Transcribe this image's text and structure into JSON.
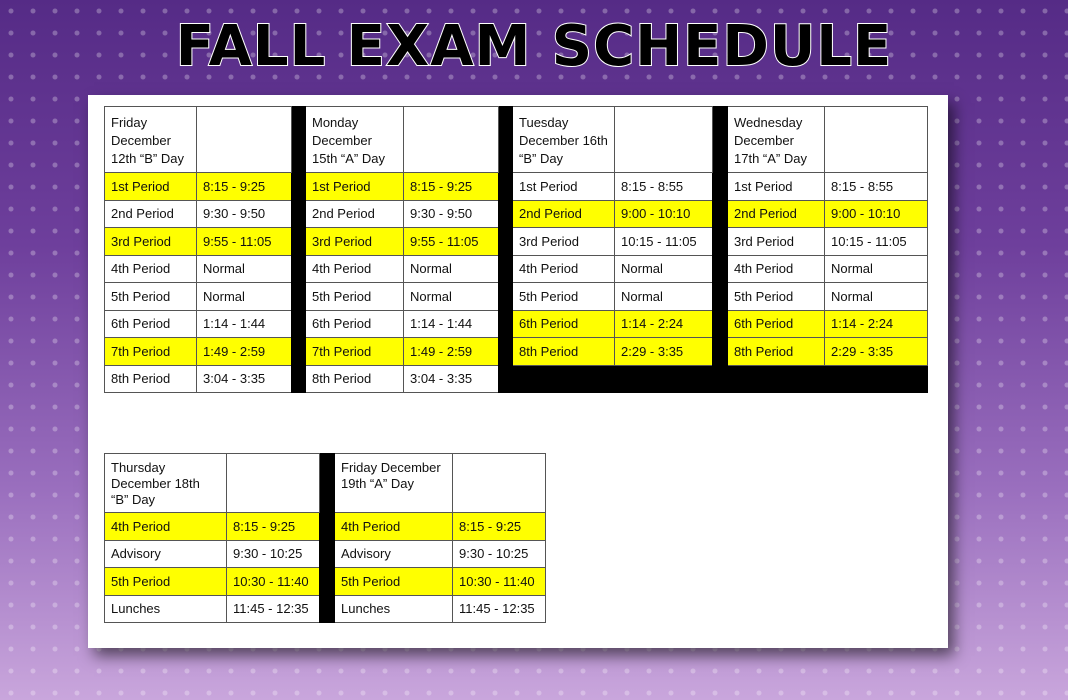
{
  "title": "FALL EXAM SCHEDULE",
  "colors": {
    "highlight": "#ffff00",
    "separator": "#000000"
  },
  "top_table": [
    {
      "header": "Friday December 12th “B” Day",
      "rows": [
        {
          "period": "1st Period",
          "time": "8:15 - 9:25",
          "highlight": true
        },
        {
          "period": "2nd Period",
          "time": "9:30 - 9:50",
          "highlight": false
        },
        {
          "period": "3rd Period",
          "time": "9:55 - 11:05",
          "highlight": true
        },
        {
          "period": "4th Period",
          "time": "Normal",
          "highlight": false
        },
        {
          "period": "5th Period",
          "time": "Normal",
          "highlight": false
        },
        {
          "period": "6th Period",
          "time": "1:14 - 1:44",
          "highlight": false
        },
        {
          "period": "7th Period",
          "time": "1:49 - 2:59",
          "highlight": true
        },
        {
          "period": "8th Period",
          "time": "3:04 - 3:35",
          "highlight": false
        }
      ]
    },
    {
      "header": "Monday December 15th “A” Day",
      "rows": [
        {
          "period": "1st Period",
          "time": "8:15 - 9:25",
          "highlight": true
        },
        {
          "period": "2nd Period",
          "time": "9:30 - 9:50",
          "highlight": false
        },
        {
          "period": "3rd Period",
          "time": "9:55 - 11:05",
          "highlight": true
        },
        {
          "period": "4th Period",
          "time": "Normal",
          "highlight": false
        },
        {
          "period": "5th Period",
          "time": "Normal",
          "highlight": false
        },
        {
          "period": "6th Period",
          "time": "1:14 - 1:44",
          "highlight": false
        },
        {
          "period": "7th Period",
          "time": "1:49 - 2:59",
          "highlight": true
        },
        {
          "period": "8th Period",
          "time": "3:04 - 3:35",
          "highlight": false
        }
      ]
    },
    {
      "header": "Tuesday December 16th “B” Day",
      "rows": [
        {
          "period": "1st Period",
          "time": "8:15 - 8:55",
          "highlight": false
        },
        {
          "period": "2nd Period",
          "time": "9:00 - 10:10",
          "highlight": true
        },
        {
          "period": "3rd Period",
          "time": "10:15 - 11:05",
          "highlight": false
        },
        {
          "period": "4th Period",
          "time": "Normal",
          "highlight": false
        },
        {
          "period": "5th Period",
          "time": "Normal",
          "highlight": false
        },
        {
          "period": "6th Period",
          "time": "1:14 - 2:24",
          "highlight": true
        },
        {
          "period": "8th Period",
          "time": "2:29 - 3:35",
          "highlight": true
        }
      ]
    },
    {
      "header": "Wednesday December 17th “A” Day",
      "rows": [
        {
          "period": "1st Period",
          "time": "8:15 - 8:55",
          "highlight": false
        },
        {
          "period": "2nd Period",
          "time": "9:00 - 10:10",
          "highlight": true
        },
        {
          "period": "3rd Period",
          "time": "10:15 - 11:05",
          "highlight": false
        },
        {
          "period": "4th Period",
          "time": "Normal",
          "highlight": false
        },
        {
          "period": "5th Period",
          "time": "Normal",
          "highlight": false
        },
        {
          "period": "6th Period",
          "time": "1:14 - 2:24",
          "highlight": true
        },
        {
          "period": "8th Period",
          "time": "2:29 - 3:35",
          "highlight": true
        }
      ]
    }
  ],
  "bottom_table": [
    {
      "header": "Thursday December 18th “B” Day",
      "rows": [
        {
          "period": "4th Period",
          "time": "8:15 - 9:25",
          "highlight": true
        },
        {
          "period": "Advisory",
          "time": "9:30 - 10:25",
          "highlight": false
        },
        {
          "period": "5th Period",
          "time": "10:30 - 11:40",
          "highlight": true
        },
        {
          "period": "Lunches",
          "time": "11:45 - 12:35",
          "highlight": false
        }
      ]
    },
    {
      "header": "Friday December 19th “A” Day",
      "rows": [
        {
          "period": "4th Period",
          "time": "8:15 - 9:25",
          "highlight": true
        },
        {
          "period": "Advisory",
          "time": "9:30 - 10:25",
          "highlight": false
        },
        {
          "period": "5th Period",
          "time": "10:30 - 11:40",
          "highlight": true
        },
        {
          "period": "Lunches",
          "time": "11:45 - 12:35",
          "highlight": false
        }
      ]
    }
  ]
}
